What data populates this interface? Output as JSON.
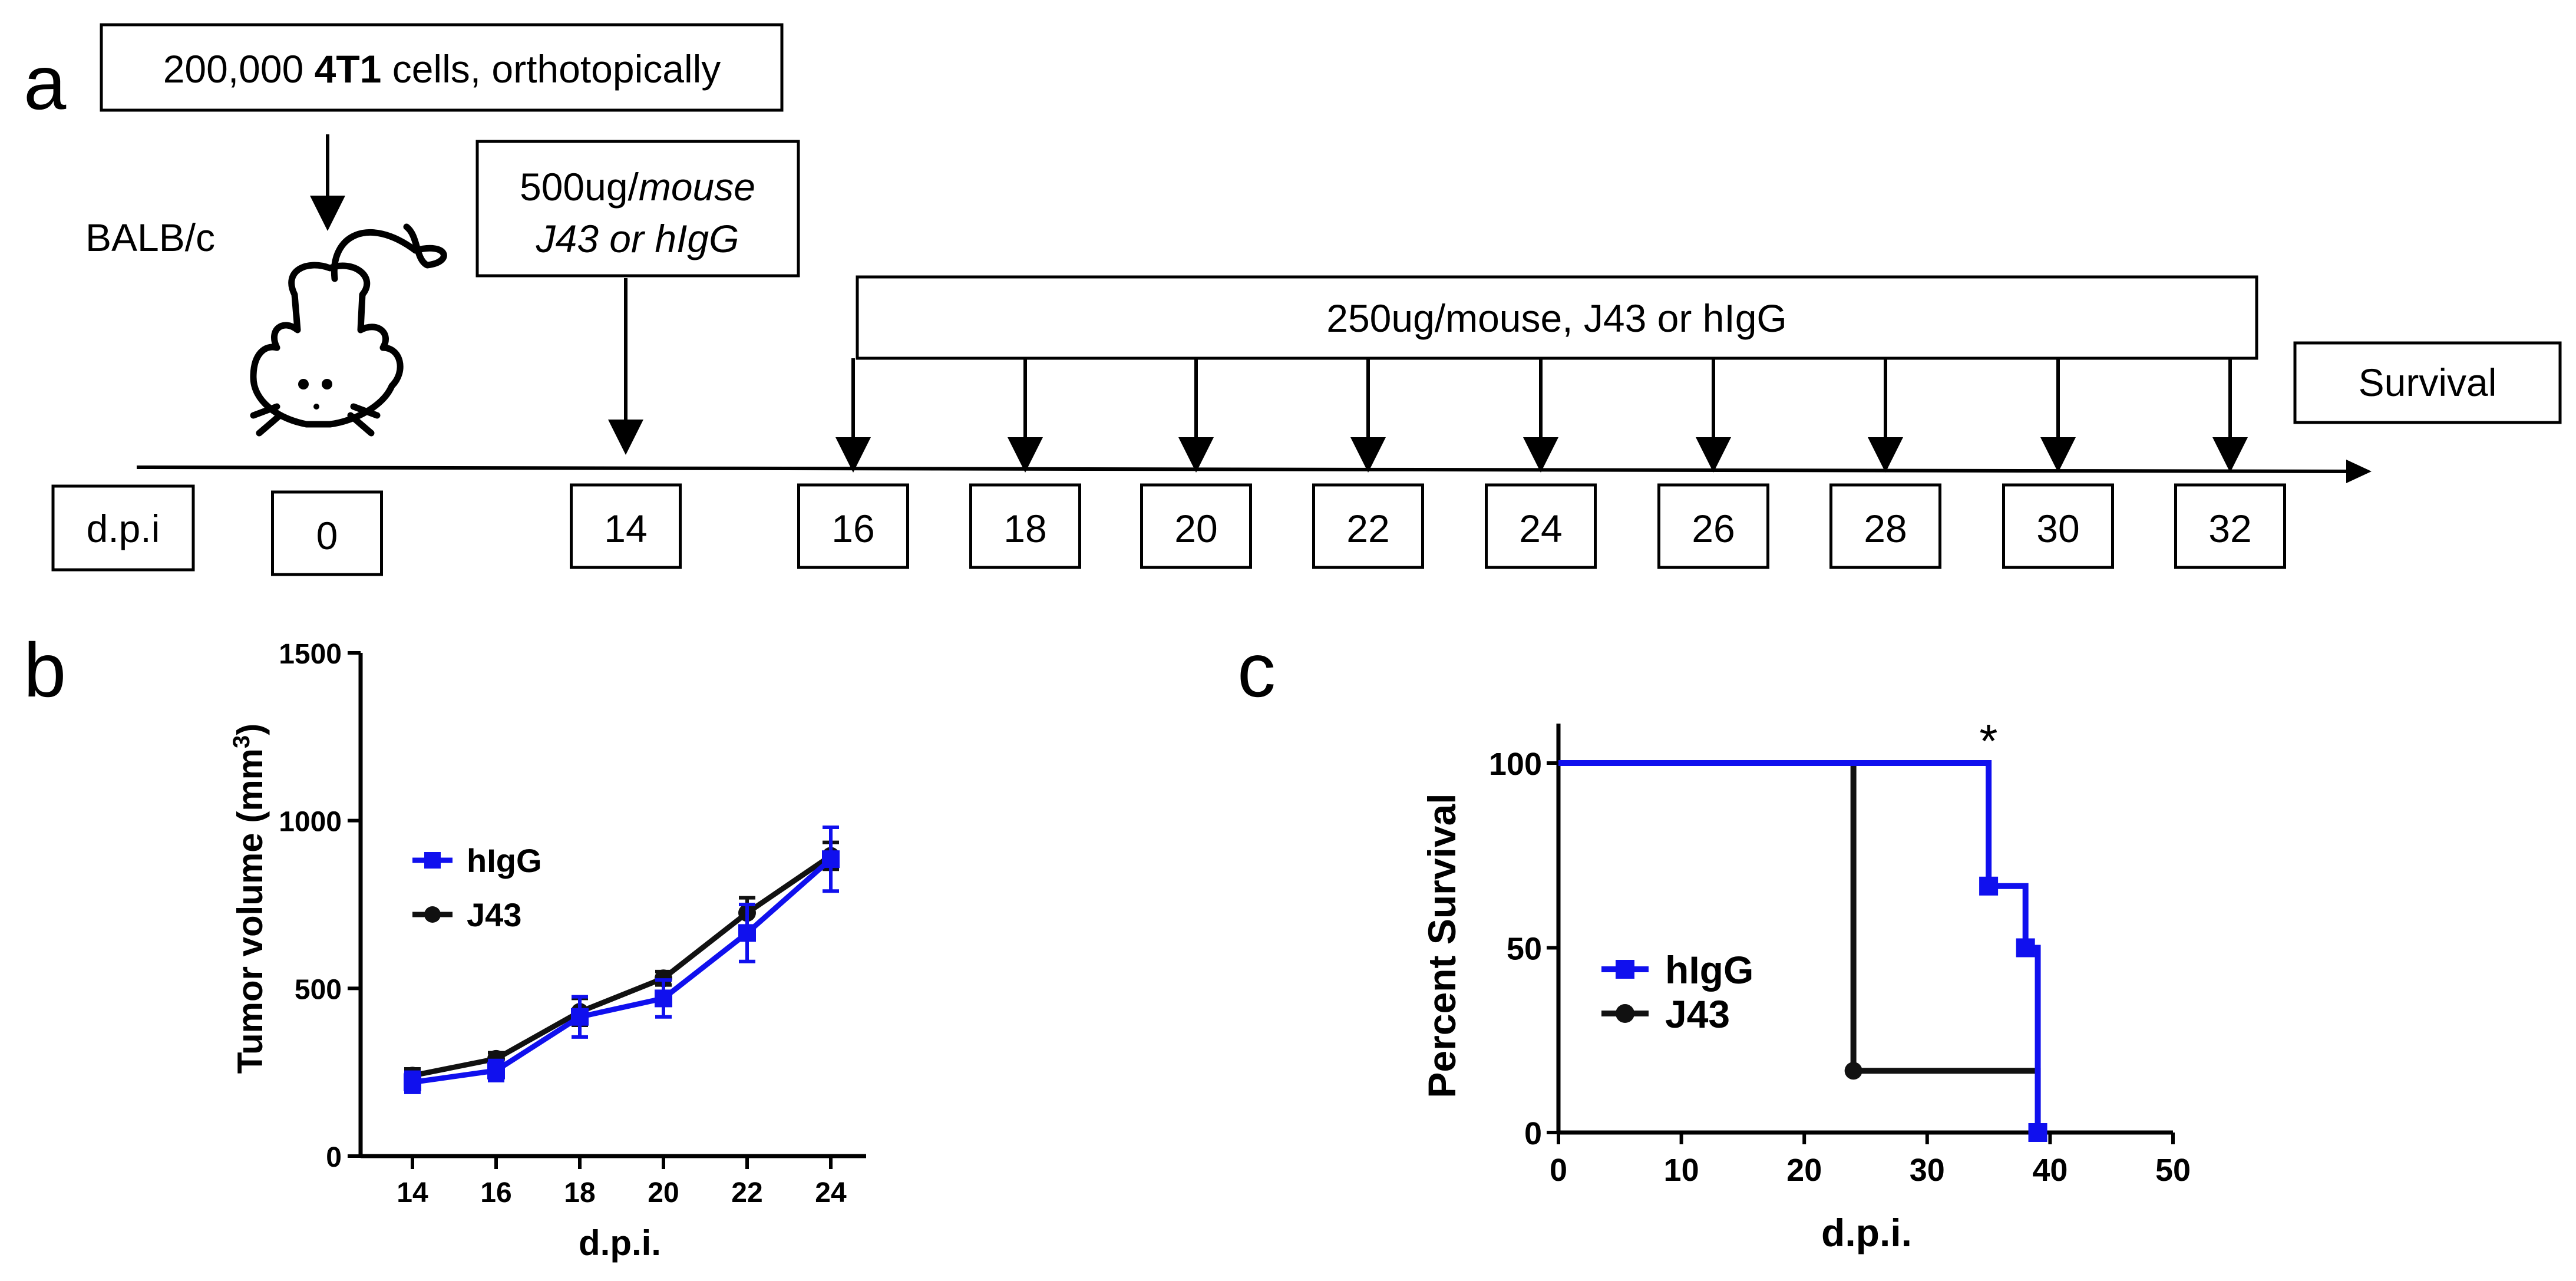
{
  "panel_a": {
    "label": "a",
    "injection_box": {
      "prefix": "200,000 ",
      "bold": "4T1",
      "suffix": " cells, orthotopically"
    },
    "strain": "BALB/c",
    "first_dose_box": {
      "line1_prefix": "500ug/",
      "line1_italic": "mouse",
      "line2": "J43 or hIgG"
    },
    "repeat_dose_box": "250ug/mouse, J43 or hIgG",
    "survival_box": "Survival",
    "dpi_label": "d.p.i",
    "days": [
      "0",
      "14",
      "16",
      "18",
      "20",
      "22",
      "24",
      "26",
      "28",
      "30",
      "32"
    ]
  },
  "panel_b": {
    "label": "b"
  },
  "panel_c": {
    "label": "c"
  },
  "chart_data": [
    {
      "type": "line",
      "panel": "b",
      "xlabel": "d.p.i.",
      "ylabel_main": "Tumor volume (mm",
      "ylabel_sup": "3",
      "ylabel_close": ")",
      "x": [
        14,
        16,
        18,
        20,
        22,
        24
      ],
      "xticks": [
        "14",
        "16",
        "18",
        "20",
        "22",
        "24"
      ],
      "yticks": [
        0,
        500,
        1000,
        1500
      ],
      "ylim": [
        0,
        1500
      ],
      "legend_position": "upper-left",
      "series": [
        {
          "name": "hIgG",
          "color": "#1010ee",
          "marker": "square",
          "values": [
            220,
            255,
            415,
            470,
            665,
            885
          ],
          "errors": [
            30,
            30,
            60,
            55,
            85,
            95
          ]
        },
        {
          "name": "J43",
          "color": "#111111",
          "marker": "circle",
          "values": [
            240,
            290,
            430,
            530,
            725,
            895
          ],
          "errors": [
            20,
            18,
            40,
            20,
            45,
            40
          ]
        }
      ]
    },
    {
      "type": "line",
      "panel": "c",
      "subtype": "kaplan-meier",
      "xlabel": "d.p.i.",
      "ylabel": "Percent Survival",
      "xticks": [
        0,
        10,
        20,
        30,
        40,
        50
      ],
      "yticks": [
        0,
        50,
        100
      ],
      "xlim": [
        0,
        50
      ],
      "ylim": [
        0,
        100
      ],
      "annotation": "*",
      "legend_position": "lower-left",
      "series": [
        {
          "name": "hIgG",
          "color": "#1010ee",
          "marker": "square",
          "steps": [
            [
              0,
              100
            ],
            [
              35,
              100
            ],
            [
              35,
              66.7
            ],
            [
              38,
              66.7
            ],
            [
              38,
              50
            ],
            [
              39,
              50
            ],
            [
              39,
              0
            ]
          ],
          "events": [
            [
              35,
              66.7
            ],
            [
              38,
              50
            ],
            [
              39,
              0
            ]
          ]
        },
        {
          "name": "J43",
          "color": "#111111",
          "marker": "circle",
          "steps": [
            [
              0,
              100
            ],
            [
              24,
              100
            ],
            [
              24,
              16.7
            ],
            [
              39,
              16.7
            ],
            [
              39,
              0
            ]
          ],
          "events": [
            [
              24,
              16.7
            ]
          ]
        }
      ]
    }
  ]
}
